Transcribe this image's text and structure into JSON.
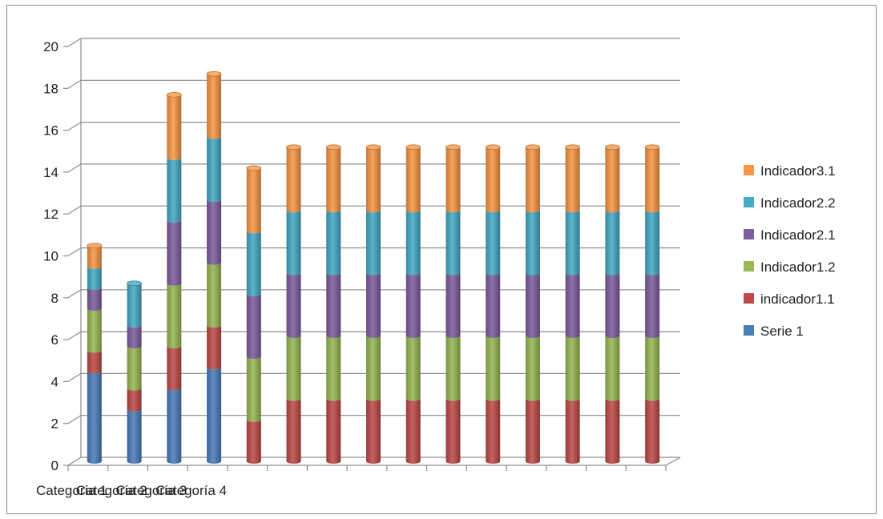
{
  "chart_data": {
    "type": "bar",
    "stacked": true,
    "style": "3d-cylinder",
    "title": "",
    "xlabel": "",
    "ylabel": "",
    "ylim": [
      0,
      20
    ],
    "yticks": [
      0,
      2,
      4,
      6,
      8,
      10,
      12,
      14,
      16,
      18,
      20
    ],
    "grid": true,
    "legend_position": "right",
    "categories": [
      "Categoría 1",
      "Categoría 2",
      "Categoría 3",
      "Categoría 4",
      "",
      "",
      "",
      "",
      "",
      "",
      "",
      "",
      "",
      "",
      ""
    ],
    "series": [
      {
        "name": "Serie 1",
        "color": "#4a7ebb",
        "values": [
          4.3,
          2.5,
          3.5,
          4.5,
          0,
          0,
          0,
          0,
          0,
          0,
          0,
          0,
          0,
          0,
          0
        ]
      },
      {
        "name": "indicador1.1",
        "color": "#be4b48",
        "values": [
          1.0,
          1.0,
          2.0,
          2.0,
          2.0,
          3.0,
          3.0,
          3.0,
          3.0,
          3.0,
          3.0,
          3.0,
          3.0,
          3.0,
          3.0
        ]
      },
      {
        "name": "Indicador1.2",
        "color": "#98b954",
        "values": [
          2.0,
          2.0,
          3.0,
          3.0,
          3.0,
          3.0,
          3.0,
          3.0,
          3.0,
          3.0,
          3.0,
          3.0,
          3.0,
          3.0,
          3.0
        ]
      },
      {
        "name": "Indicador2.1",
        "color": "#7d5fa0",
        "values": [
          1.0,
          1.0,
          3.0,
          3.0,
          3.0,
          3.0,
          3.0,
          3.0,
          3.0,
          3.0,
          3.0,
          3.0,
          3.0,
          3.0,
          3.0
        ]
      },
      {
        "name": "Indicador2.2",
        "color": "#46aac5",
        "values": [
          1.0,
          2.0,
          3.0,
          3.0,
          3.0,
          3.0,
          3.0,
          3.0,
          3.0,
          3.0,
          3.0,
          3.0,
          3.0,
          3.0,
          3.0
        ]
      },
      {
        "name": "Indicador3.1",
        "color": "#f79646",
        "values": [
          1.0,
          0,
          3.0,
          3.0,
          3.0,
          3.0,
          3.0,
          3.0,
          3.0,
          3.0,
          3.0,
          3.0,
          3.0,
          3.0,
          3.0
        ]
      }
    ],
    "legend_order": [
      "Indicador3.1",
      "Indicador2.2",
      "Indicador2.1",
      "Indicador1.2",
      "indicador1.1",
      "Serie 1"
    ]
  }
}
